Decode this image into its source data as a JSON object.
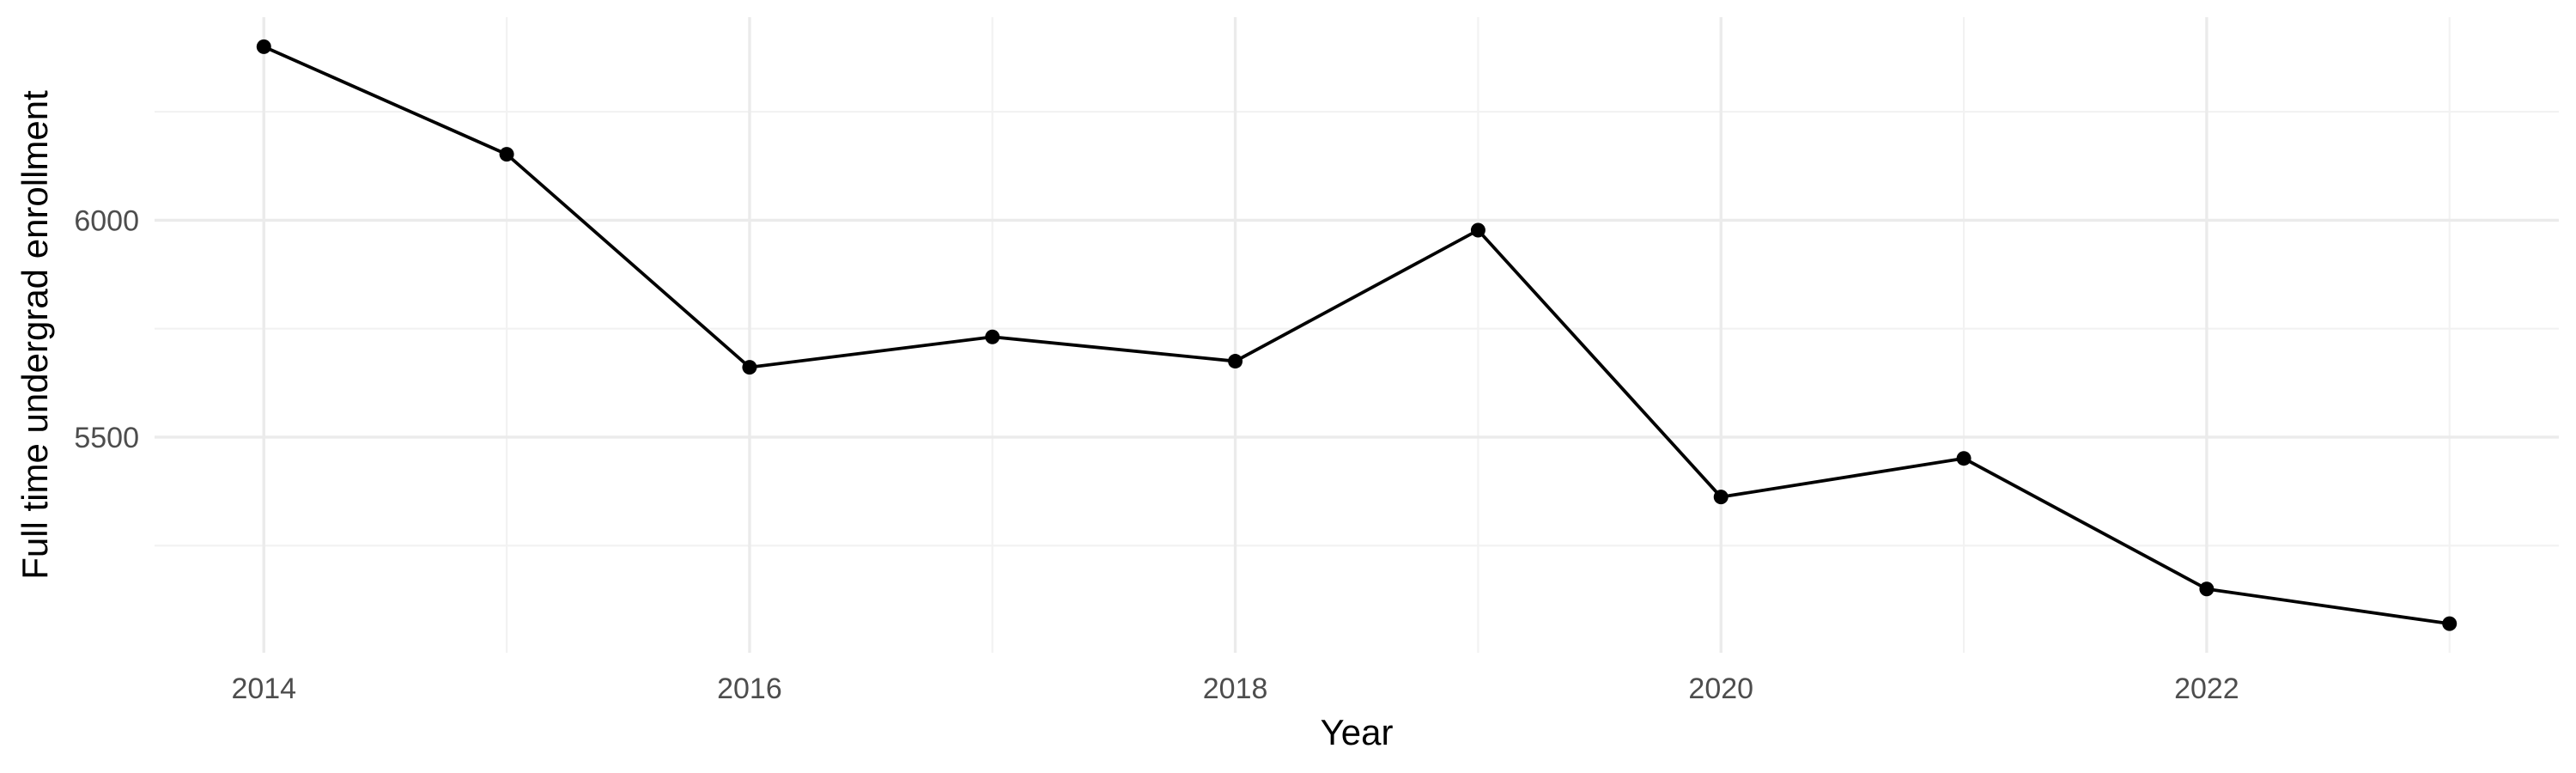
{
  "chart_data": {
    "type": "line",
    "title": "",
    "xlabel": "Year",
    "ylabel": "Full time undergrad enrollment",
    "x": [
      2014,
      2015,
      2016,
      2017,
      2018,
      2019,
      2020,
      2021,
      2022,
      2023
    ],
    "series": [
      {
        "values": [
          6400,
          6152,
          5661,
          5731,
          5675,
          5977,
          5362,
          5451,
          5150,
          5070
        ]
      }
    ],
    "x_ticks": [
      2014,
      2016,
      2018,
      2020,
      2022
    ],
    "x_tick_labels": [
      "2014",
      "2016",
      "2018",
      "2020",
      "2022"
    ],
    "y_ticks": [
      5500,
      6000
    ],
    "y_tick_labels": [
      "5500",
      "6000"
    ],
    "xlim": [
      2013.55,
      2023.45
    ],
    "ylim": [
      5003,
      6468
    ],
    "grid": true,
    "legend": "none",
    "colors": {
      "series": "#000000",
      "grid_major": "#ebebeb",
      "grid_minor": "#f2f2f2",
      "tick_text": "#4d4d4d"
    }
  }
}
